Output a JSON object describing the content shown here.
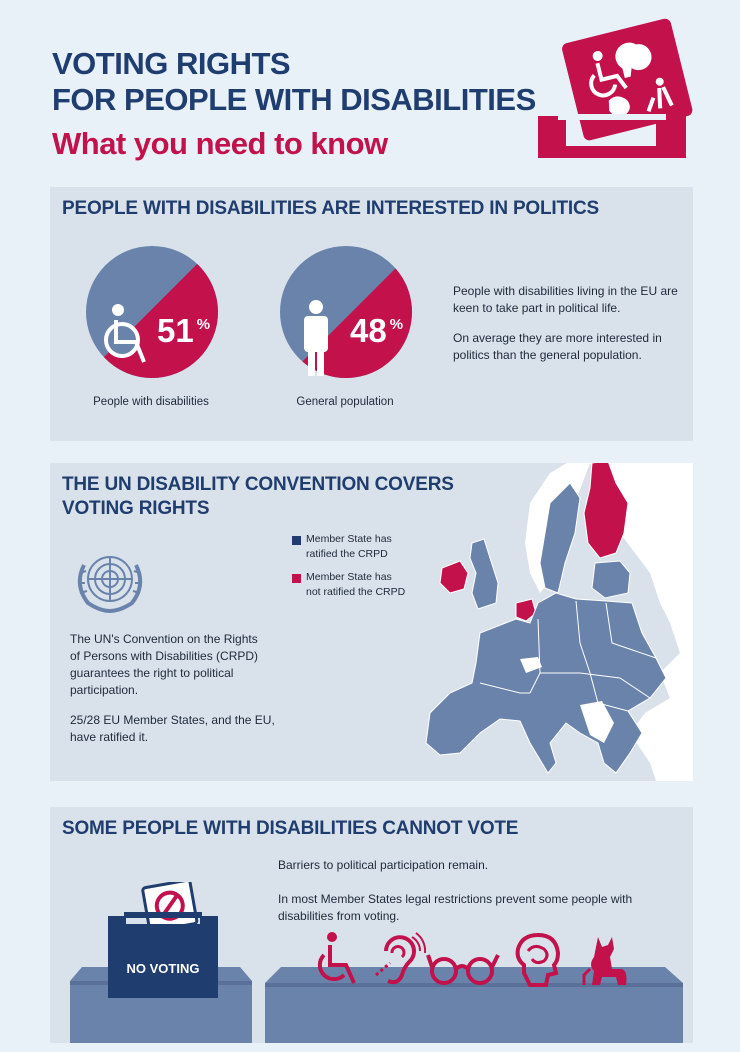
{
  "header": {
    "title_line1": "VOTING RIGHTS",
    "title_line2": "FOR PEOPLE WITH DISABILITIES",
    "subtitle": "What you need to know"
  },
  "section1": {
    "title": "PEOPLE WITH DISABILITIES ARE INTERESTED IN POLITICS",
    "chart1": {
      "value": 51,
      "label": "51",
      "unit": "%",
      "caption": "People with disabilities"
    },
    "chart2": {
      "value": 48,
      "label": "48",
      "unit": "%",
      "caption": "General population"
    },
    "text1": "People with disabilities living in the EU are keen to take part in political life.",
    "text2": "On average they are more interested in politics than the general population."
  },
  "section2": {
    "title_line1": "THE UN DISABILITY CONVENTION COVERS",
    "title_line2": "VOTING RIGHTS",
    "legend_ratified": "Member State has ratified the CRPD",
    "legend_not_ratified": "Member State has not ratified the CRPD",
    "text1": "The UN's Convention on the Rights of Persons with Disabilities (CRPD) guarantees the right to political participation.",
    "text2": "25/28 EU Member States, and the EU, have ratified it."
  },
  "section3": {
    "title": "SOME PEOPLE WITH DISABILITIES CANNOT VOTE",
    "text1": "Barriers to political participation remain.",
    "text2": "In most Member States legal restrictions prevent some people with disabilities from voting.",
    "ballot_label": "NO VOTING"
  },
  "colors": {
    "navy": "#1f3d6e",
    "crimson": "#c2114b",
    "steel": "#6a83ab",
    "panel": "#d9e2ea",
    "background": "#e8f1f8"
  },
  "icons": [
    "ballot-box-icon",
    "wheelchair-icon",
    "person-icon",
    "un-emblem-icon",
    "hearing-icon",
    "glasses-icon",
    "head-icon",
    "guide-dog-icon",
    "no-entry-icon"
  ]
}
